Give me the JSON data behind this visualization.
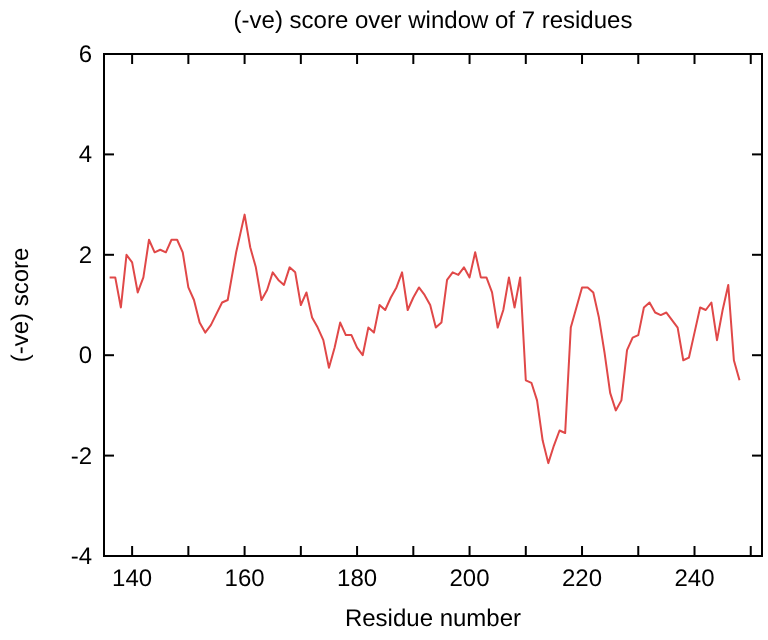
{
  "chart_data": {
    "type": "line",
    "title": "(-ve) score over window of 7 residues",
    "xlabel": "Residue number",
    "ylabel": "(-ve) score",
    "xlim": [
      135,
      252
    ],
    "xticks": [
      140,
      {
        "value": 150,
        "label": null
      },
      160,
      {
        "value": 170,
        "label": null
      },
      180,
      {
        "value": 190,
        "label": null
      },
      200,
      {
        "value": 210,
        "label": null
      },
      220,
      {
        "value": 230,
        "label": null
      },
      240,
      {
        "value": 250,
        "label": null
      }
    ],
    "ylim": [
      -4,
      6
    ],
    "yticks": [
      -4,
      -2,
      0,
      2,
      4,
      6
    ],
    "grid": false,
    "marker": "none",
    "line_style": "solid",
    "series": [
      {
        "color": "#e04848",
        "x": [
          136,
          137,
          138,
          139,
          140,
          141,
          142,
          143,
          144,
          145,
          146,
          147,
          148,
          149,
          150,
          151,
          152,
          153,
          154,
          156,
          157,
          158.5,
          160,
          161,
          162,
          163,
          164,
          165,
          166,
          167,
          168,
          169,
          170,
          171,
          172,
          173,
          174,
          175,
          176,
          177,
          178,
          179,
          180,
          181,
          182,
          183,
          184,
          185,
          186,
          187,
          188,
          189,
          190,
          191,
          192,
          193,
          194,
          195,
          196,
          197,
          198,
          199,
          200,
          201,
          202,
          203,
          204,
          205,
          206,
          207,
          208,
          209,
          210,
          211,
          212,
          213,
          214,
          215,
          216,
          217,
          218,
          219,
          220,
          221,
          222,
          223,
          224,
          225,
          226,
          227,
          228,
          229,
          230,
          231,
          232,
          233,
          234,
          235,
          236,
          237,
          238,
          239,
          240,
          241,
          242,
          243,
          244,
          245,
          246,
          247,
          248
        ],
        "values": [
          1.55,
          1.55,
          0.95,
          2.0,
          1.85,
          1.25,
          1.55,
          2.3,
          2.05,
          2.1,
          2.05,
          2.3,
          2.3,
          2.05,
          1.35,
          1.1,
          0.65,
          0.45,
          0.6,
          1.05,
          1.1,
          2.05,
          2.8,
          2.15,
          1.75,
          1.1,
          1.3,
          1.65,
          1.5,
          1.4,
          1.75,
          1.65,
          1.0,
          1.25,
          0.75,
          0.55,
          0.3,
          -0.25,
          0.15,
          0.65,
          0.4,
          0.4,
          0.15,
          0.0,
          0.55,
          0.45,
          1.0,
          0.9,
          1.15,
          1.35,
          1.65,
          0.9,
          1.15,
          1.35,
          1.2,
          1.0,
          0.55,
          0.65,
          1.5,
          1.65,
          1.6,
          1.75,
          1.55,
          2.05,
          1.55,
          1.55,
          1.25,
          0.55,
          0.9,
          1.55,
          0.95,
          1.55,
          -0.5,
          -0.55,
          -0.9,
          -1.7,
          -2.15,
          -1.8,
          -1.5,
          -1.55,
          0.55,
          0.95,
          1.35,
          1.35,
          1.25,
          0.75,
          0.05,
          -0.75,
          -1.1,
          -0.9,
          0.1,
          0.35,
          0.4,
          0.95,
          1.05,
          0.85,
          0.8,
          0.85,
          0.7,
          0.55,
          -0.1,
          -0.05,
          0.45,
          0.95,
          0.9,
          1.05,
          0.3,
          0.9,
          1.4,
          -0.1,
          -0.5
        ]
      }
    ]
  }
}
